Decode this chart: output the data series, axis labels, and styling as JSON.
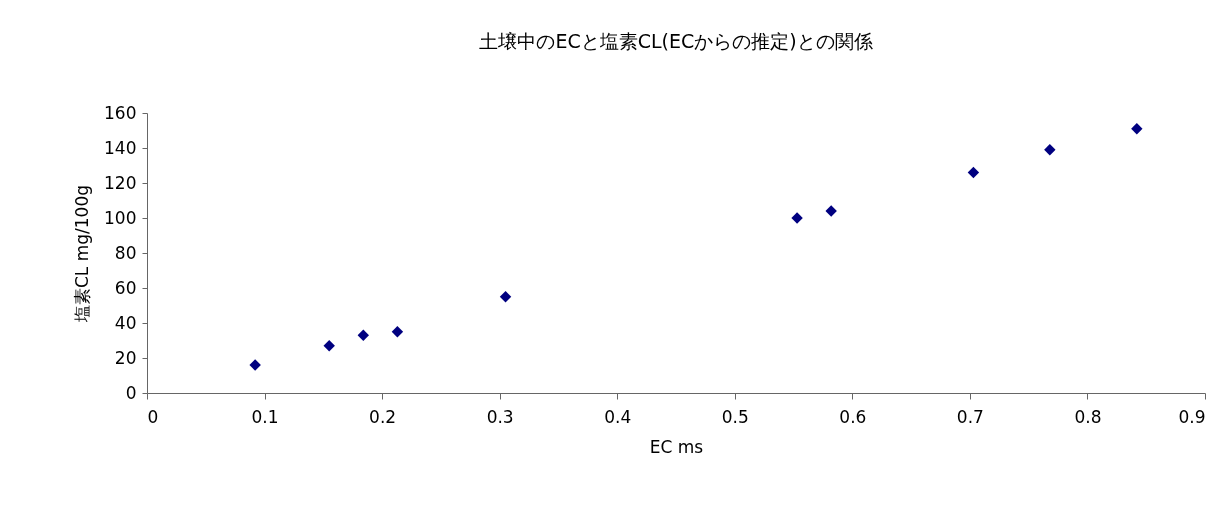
{
  "chart_data": {
    "type": "scatter",
    "title": "土壌中のECと塩素CL(ECからの推定)との関係",
    "xlabel": "EC  ms",
    "ylabel": "塩素CL  mg/100g",
    "x": [
      0.092,
      0.155,
      0.184,
      0.213,
      0.305,
      0.553,
      0.582,
      0.703,
      0.768,
      0.842
    ],
    "series": [
      {
        "color": "#000080",
        "values": [
          16,
          27,
          33,
          35,
          55,
          100,
          104,
          126,
          139,
          151
        ]
      }
    ],
    "xlim": [
      0,
      0.9
    ],
    "xticks": [
      0,
      0.1,
      0.2,
      0.3,
      0.4,
      0.5,
      0.6,
      0.7,
      0.8,
      0.9
    ],
    "ylim": [
      0,
      160
    ],
    "yticks": [
      0,
      20,
      40,
      60,
      80,
      100,
      120,
      140,
      160
    ],
    "grid": false,
    "marker": "diamond"
  }
}
